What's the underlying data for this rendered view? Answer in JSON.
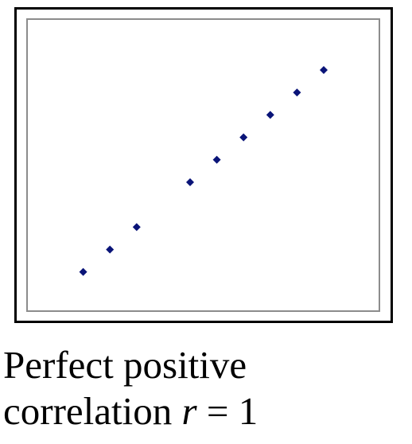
{
  "chart_data": {
    "type": "scatter",
    "title": "",
    "xlabel": "",
    "ylabel": "",
    "xlim": [
      0,
      10
    ],
    "ylim": [
      0,
      10
    ],
    "grid": false,
    "legend": "none",
    "marker_color": "#0a1478",
    "series": [
      {
        "x": [
          1,
          2,
          3,
          5,
          6,
          7,
          8,
          9,
          10
        ],
        "y": [
          1,
          2,
          3,
          5,
          6,
          7,
          8,
          9,
          10
        ]
      }
    ]
  },
  "caption": {
    "line1": "Perfect positive",
    "line2_prefix": "correlation ",
    "variable": "r",
    "line2_suffix": " = 1"
  }
}
